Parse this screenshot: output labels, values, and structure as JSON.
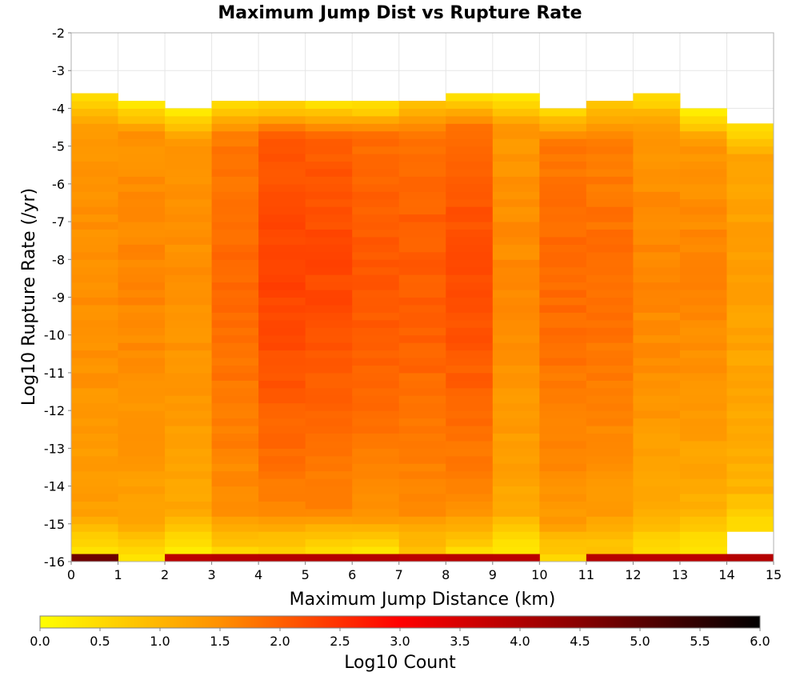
{
  "chart_data": {
    "type": "heatmap",
    "title": "Maximum Jump Dist vs Rupture Rate",
    "xlabel": "Maximum Jump Distance (km)",
    "ylabel": "Log10 Rupture Rate (/yr)",
    "xlim": [
      0,
      15
    ],
    "ylim": [
      -16,
      -2
    ],
    "x_ticks": [
      "0",
      "1",
      "2",
      "3",
      "4",
      "5",
      "6",
      "7",
      "8",
      "9",
      "10",
      "11",
      "12",
      "13",
      "14",
      "15"
    ],
    "y_ticks": [
      "-2",
      "-3",
      "-4",
      "-5",
      "-6",
      "-7",
      "-8",
      "-9",
      "-10",
      "-11",
      "-12",
      "-13",
      "-14",
      "-15",
      "-16"
    ],
    "colorbar": {
      "label": "Log10 Count",
      "range": [
        0,
        6
      ],
      "ticks": [
        "0.0",
        "0.5",
        "1.0",
        "1.5",
        "2.0",
        "2.5",
        "3.0",
        "3.5",
        "4.0",
        "4.5",
        "5.0",
        "5.5",
        "6.0"
      ],
      "colors": [
        "#ffff00",
        "#ff8000",
        "#ff0000",
        "#000000"
      ]
    },
    "grid": true,
    "bin_width_x": 1,
    "bin_height_y": 0.2,
    "columns": [
      {
        "x": 0,
        "y_min": -16.0,
        "y_max": -3.6,
        "base": 1.25,
        "peak": 1.5,
        "edge": 0.4
      },
      {
        "x": 1,
        "y_min": -16.0,
        "y_max": -3.8,
        "base": 1.15,
        "peak": 1.6,
        "edge": 0.4
      },
      {
        "x": 2,
        "y_min": -16.0,
        "y_max": -4.0,
        "base": 1.1,
        "peak": 1.5,
        "edge": 0.3
      },
      {
        "x": 3,
        "y_min": -16.0,
        "y_max": -3.8,
        "base": 1.35,
        "peak": 1.9,
        "edge": 0.6
      },
      {
        "x": 4,
        "y_min": -16.0,
        "y_max": -3.8,
        "base": 1.4,
        "peak": 2.3,
        "edge": 0.6
      },
      {
        "x": 5,
        "y_min": -16.0,
        "y_max": -3.8,
        "base": 1.4,
        "peak": 2.25,
        "edge": 0.5
      },
      {
        "x": 6,
        "y_min": -16.0,
        "y_max": -3.8,
        "base": 1.35,
        "peak": 2.1,
        "edge": 0.4
      },
      {
        "x": 7,
        "y_min": -16.0,
        "y_max": -3.8,
        "base": 1.35,
        "peak": 2.05,
        "edge": 0.8
      },
      {
        "x": 8,
        "y_min": -16.0,
        "y_max": -3.6,
        "base": 1.3,
        "peak": 2.2,
        "edge": 0.5
      },
      {
        "x": 9,
        "y_min": -16.0,
        "y_max": -3.6,
        "base": 1.05,
        "peak": 1.55,
        "edge": 0.3
      },
      {
        "x": 10,
        "y_min": -16.0,
        "y_max": -4.0,
        "base": 1.25,
        "peak": 1.9,
        "edge": 0.6
      },
      {
        "x": 11,
        "y_min": -16.0,
        "y_max": -3.8,
        "base": 1.2,
        "peak": 1.85,
        "edge": 0.8
      },
      {
        "x": 12,
        "y_min": -16.0,
        "y_max": -3.6,
        "base": 1.0,
        "peak": 1.6,
        "edge": 0.5
      },
      {
        "x": 13,
        "y_min": -16.0,
        "y_max": -4.0,
        "base": 0.9,
        "peak": 1.6,
        "edge": 0.3
      },
      {
        "x": 14,
        "y_min": -15.4,
        "y_max": -4.4,
        "base": 0.95,
        "peak": 1.3,
        "edge": 0.5
      }
    ],
    "bottom_band": {
      "y_min": -16.0,
      "y_max": -15.8,
      "value": 3.9,
      "gaps_x": [
        1,
        10
      ]
    },
    "bottom_band_value_at_zero": 4.8,
    "top_gaps": [
      {
        "x": 13,
        "y_min": -4.0,
        "y_max": -3.8
      }
    ]
  }
}
